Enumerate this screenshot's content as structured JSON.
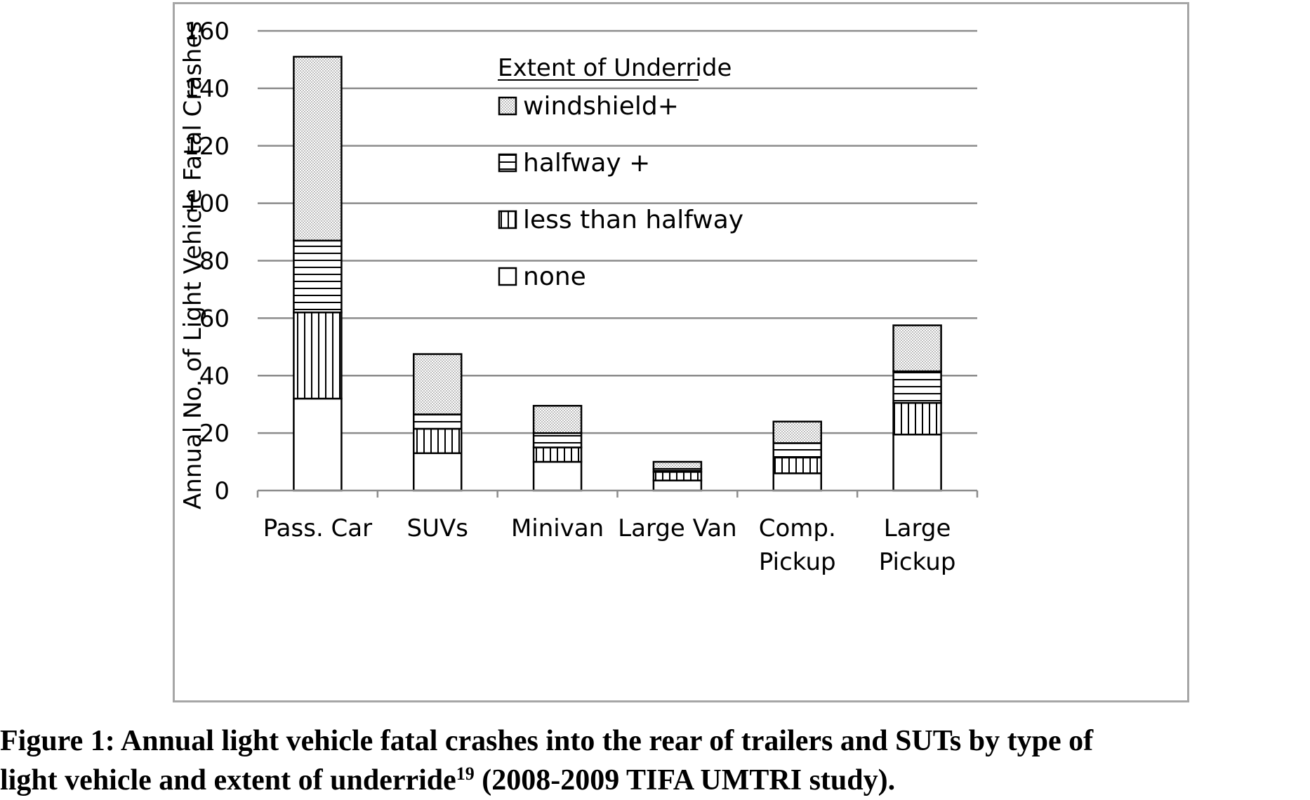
{
  "chart_data": {
    "type": "bar",
    "stacked": true,
    "categories": [
      "Pass. Car",
      "SUVs",
      "Minivan",
      "Large Van",
      "Comp. Pickup",
      "Large Pickup"
    ],
    "category_lines": [
      [
        "Pass. Car"
      ],
      [
        "SUVs"
      ],
      [
        "Minivan"
      ],
      [
        "Large Van"
      ],
      [
        "Comp.",
        "Pickup"
      ],
      [
        "Large",
        "Pickup"
      ]
    ],
    "series": [
      {
        "name": "none",
        "values": [
          32,
          13,
          10,
          3.5,
          6,
          19.5
        ],
        "pattern": "blank"
      },
      {
        "name": "less than halfway",
        "values": [
          30,
          8.5,
          5,
          3,
          5.5,
          11
        ],
        "pattern": "vertical-lines"
      },
      {
        "name": "halfway +",
        "values": [
          25,
          5,
          5,
          1,
          5,
          11
        ],
        "pattern": "horizontal-lines"
      },
      {
        "name": "windshield+",
        "values": [
          64,
          21,
          9.5,
          2.5,
          7.5,
          16
        ],
        "pattern": "dots"
      }
    ],
    "ylabel": "Annual No. of Light Vehicle Fatal Crashes",
    "xlabel": "",
    "ylim": [
      0,
      160
    ],
    "yticks": [
      0,
      20,
      40,
      60,
      80,
      100,
      120,
      140,
      160
    ],
    "grid": true,
    "legend_title": "Extent of Underride",
    "legend_order": [
      "windshield+",
      "halfway +",
      "less than halfway",
      "none"
    ],
    "legend_placement": "top-center",
    "colors": {
      "grid": "#8c8c8c",
      "frame": "#a6a6a6",
      "bar_stroke": "#000000",
      "dots": "#c8c8c8"
    }
  },
  "caption": {
    "line1": "Figure 1: Annual light vehicle fatal crashes into the rear of trailers and SUTs by type of",
    "line2_start": "light vehicle and extent of underride",
    "superscript": "19",
    "line2_end": " (2008-2009 TIFA UMTRI study)."
  }
}
